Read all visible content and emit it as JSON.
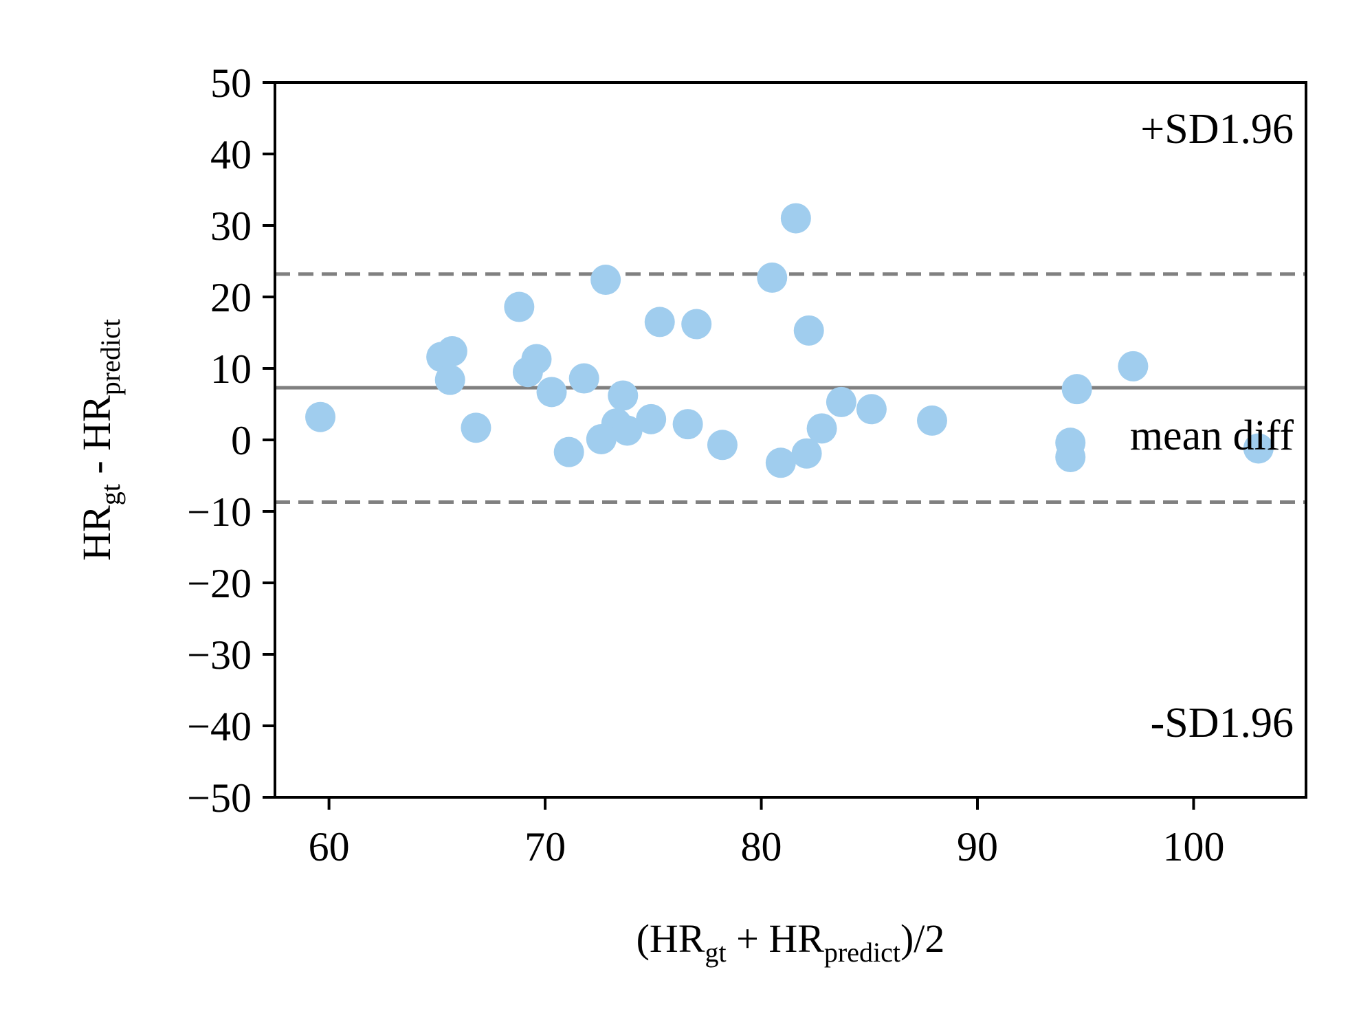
{
  "chart_data": {
    "type": "scatter",
    "title": "",
    "xlabel": {
      "pre": "(HR",
      "sub1": "gt",
      "mid": " + HR",
      "sub2": "predict",
      "post": ")/2"
    },
    "ylabel": {
      "pre": "HR",
      "sub1": "gt",
      "mid": " - HR",
      "sub2": "predict"
    },
    "xlim": [
      57.5,
      105.2
    ],
    "ylim": [
      -50,
      50
    ],
    "xticks": [
      60,
      70,
      80,
      90,
      100
    ],
    "yticks": [
      50,
      40,
      30,
      20,
      10,
      0,
      -10,
      -20,
      -30,
      -40,
      -50
    ],
    "grid": false,
    "point_color": "#a0cdee",
    "line_color": "#808080",
    "mean_diff": 7.3,
    "upper_limit": 23.2,
    "lower_limit": -8.7,
    "annotations": {
      "upper": "+SD1.96",
      "mean": "mean diff",
      "lower": "-SD1.96"
    },
    "points": {
      "x": [
        59.6,
        65.2,
        65.7,
        65.6,
        66.8,
        68.8,
        69.6,
        69.2,
        70.3,
        71.8,
        71.1,
        72.8,
        72.6,
        73.3,
        73.6,
        73.8,
        74.9,
        75.3,
        76.6,
        77.0,
        78.2,
        80.5,
        81.6,
        80.9,
        82.1,
        82.2,
        82.8,
        83.7,
        85.1,
        87.9,
        94.3,
        94.3,
        94.6,
        97.2,
        103.0
      ],
      "y": [
        3.2,
        11.6,
        12.4,
        8.4,
        1.7,
        18.6,
        11.3,
        9.5,
        6.7,
        8.6,
        -1.7,
        22.4,
        0.1,
        2.3,
        6.2,
        1.3,
        2.9,
        16.5,
        2.2,
        16.2,
        -0.7,
        22.7,
        31.0,
        -3.2,
        -1.9,
        15.3,
        1.6,
        5.3,
        4.3,
        2.7,
        -0.4,
        -2.4,
        7.1,
        10.3,
        -1.2
      ]
    }
  }
}
